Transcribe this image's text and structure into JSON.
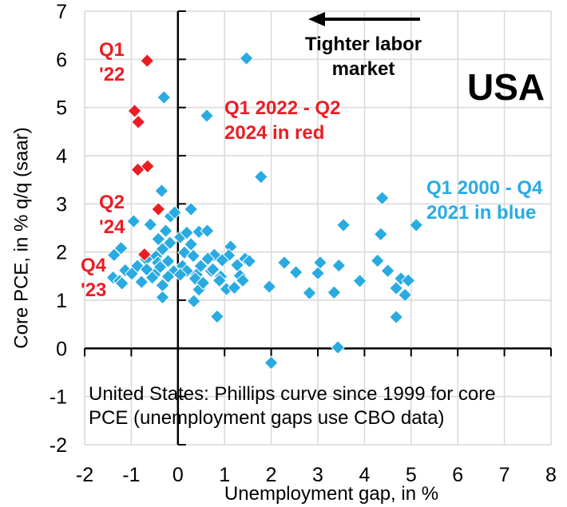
{
  "chart_data": {
    "type": "scatter",
    "xlabel": "Unemployment gap, in %",
    "ylabel": "Core PCE, in % q/q (saar)",
    "xlim": [
      -2,
      8
    ],
    "ylim": [
      -2,
      7
    ],
    "xticks": [
      -2,
      -1,
      0,
      1,
      2,
      3,
      4,
      5,
      6,
      7,
      8
    ],
    "yticks": [
      -2,
      -1,
      0,
      1,
      2,
      3,
      4,
      5,
      6,
      7
    ],
    "grid": true,
    "gridline_color": "#D9D9D9",
    "axis_color": "#000000",
    "series": [
      {
        "key": "blue",
        "name": "Q1 2000 - Q4 2021 in blue",
        "color": "#29ABE2",
        "marker": "diamond",
        "points": [
          [
            1.47,
            6.02
          ],
          [
            -0.3,
            5.21
          ],
          [
            0.62,
            4.83
          ],
          [
            1.78,
            3.56
          ],
          [
            -0.35,
            3.27
          ],
          [
            4.38,
            3.12
          ],
          [
            3.55,
            2.56
          ],
          [
            5.11,
            2.56
          ],
          [
            4.35,
            2.37
          ],
          [
            -0.95,
            2.64
          ],
          [
            -0.59,
            2.57
          ],
          [
            -0.16,
            2.74
          ],
          [
            -0.07,
            2.82
          ],
          [
            0.28,
            2.89
          ],
          [
            -0.26,
            2.44
          ],
          [
            -0.42,
            2.27
          ],
          [
            -0.17,
            2.19
          ],
          [
            0.05,
            2.31
          ],
          [
            0.28,
            2.16
          ],
          [
            0.19,
            2.4
          ],
          [
            0.45,
            2.42
          ],
          [
            0.63,
            2.44
          ],
          [
            1.13,
            2.11
          ],
          [
            -1.22,
            2.08
          ],
          [
            -1.37,
            1.94
          ],
          [
            -0.47,
            1.91
          ],
          [
            -0.33,
            2.06
          ],
          [
            0.14,
            1.99
          ],
          [
            0.33,
            1.92
          ],
          [
            0.78,
            1.94
          ],
          [
            1.09,
            1.93
          ],
          [
            -1.13,
            1.62
          ],
          [
            -0.87,
            1.71
          ],
          [
            -0.68,
            1.85
          ],
          [
            -0.43,
            1.78
          ],
          [
            -0.21,
            1.81
          ],
          [
            -0.38,
            1.69
          ],
          [
            -0.09,
            1.6
          ],
          [
            0.1,
            1.71
          ],
          [
            0.19,
            1.61
          ],
          [
            0.05,
            1.53
          ],
          [
            -0.5,
            1.53
          ],
          [
            -0.67,
            1.64
          ],
          [
            -0.21,
            1.49
          ],
          [
            0.4,
            1.53
          ],
          [
            0.49,
            1.71
          ],
          [
            0.64,
            1.86
          ],
          [
            0.71,
            1.61
          ],
          [
            0.75,
            1.64
          ],
          [
            0.92,
            1.49
          ],
          [
            0.95,
            1.83
          ],
          [
            1.27,
            1.73
          ],
          [
            1.44,
            1.86
          ],
          [
            1.33,
            1.51
          ],
          [
            1.53,
            1.81
          ],
          [
            2.28,
            1.78
          ],
          [
            2.53,
            1.58
          ],
          [
            3.05,
            1.78
          ],
          [
            3.0,
            1.56
          ],
          [
            3.45,
            1.72
          ],
          [
            4.28,
            1.82
          ],
          [
            4.5,
            1.61
          ],
          [
            -1.39,
            1.47
          ],
          [
            -1.25,
            1.4
          ],
          [
            -1.2,
            1.35
          ],
          [
            -0.99,
            1.55
          ],
          [
            -0.78,
            1.38
          ],
          [
            -0.55,
            1.47
          ],
          [
            -0.33,
            1.31
          ],
          [
            0.37,
            1.45
          ],
          [
            0.45,
            1.22
          ],
          [
            0.54,
            1.36
          ],
          [
            0.89,
            1.41
          ],
          [
            1.04,
            1.23
          ],
          [
            1.21,
            1.26
          ],
          [
            1.39,
            1.41
          ],
          [
            1.96,
            1.28
          ],
          [
            2.82,
            1.15
          ],
          [
            3.35,
            1.16
          ],
          [
            3.9,
            1.4
          ],
          [
            4.68,
            1.25
          ],
          [
            4.78,
            1.45
          ],
          [
            4.94,
            1.41
          ],
          [
            4.87,
            1.11
          ],
          [
            -0.33,
            1.06
          ],
          [
            0.34,
            0.98
          ],
          [
            0.84,
            0.66
          ],
          [
            4.68,
            0.65
          ],
          [
            3.43,
            0.02
          ],
          [
            2.0,
            -0.3
          ]
        ]
      },
      {
        "key": "red",
        "name": "Q1 2022 - Q2 2024 in red",
        "color": "#EC1C24",
        "marker": "diamond",
        "points": [
          [
            -0.66,
            5.97
          ],
          [
            -0.93,
            4.93
          ],
          [
            -0.85,
            4.7
          ],
          [
            -0.65,
            3.78
          ],
          [
            -0.86,
            3.71
          ],
          [
            -0.42,
            2.89
          ],
          [
            -0.72,
            1.95
          ]
        ]
      }
    ]
  },
  "annotations": {
    "country": "USA",
    "arrow_label": "Tighter labor\nmarket",
    "red_legend": "Q1 2022 - Q2\n2024 in red",
    "blue_legend": "Q1 2000 - Q4\n2021 in blue",
    "q1_22": "Q1\n'22",
    "q2_24": "Q2\n'24",
    "q4_23": "Q4\n'23",
    "caption": "United States: Phillips curve since 1999 for core\nPCE (unemployment gaps use CBO data)"
  },
  "colors": {
    "red": "#EC1C24",
    "blue": "#29ABE2",
    "gridline": "#D9D9D9",
    "black": "#000000"
  }
}
